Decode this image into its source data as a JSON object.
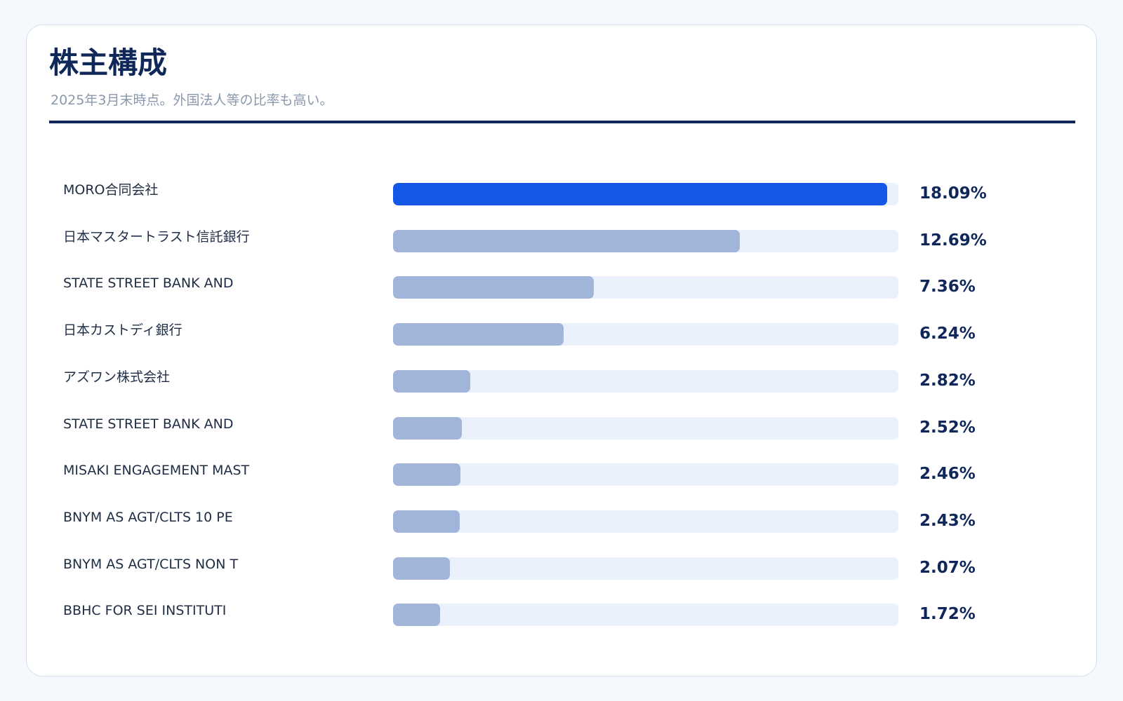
{
  "header": {
    "title": "株主構成",
    "subtitle": "2025年3月末時点。外国法人等の比率も高い。"
  },
  "colors": {
    "highlight_bar": "#1557e6",
    "bar": "#a1b4d9",
    "track": "#eaf1fc",
    "title": "#10275a"
  },
  "chart_data": {
    "type": "bar",
    "orientation": "horizontal",
    "title": "株主構成",
    "subtitle": "2025年3月末時点。外国法人等の比率も高い。",
    "xlim": [
      0,
      18.5
    ],
    "categories": [
      "MORO合同会社",
      "日本マスタートラスト信託銀行",
      "STATE STREET BANK AND",
      "日本カストディ銀行",
      "アズワン株式会社",
      "STATE STREET BANK AND",
      "MISAKI ENGAGEMENT MAST",
      "BNYM AS AGT/CLTS 10 PE",
      "BNYM AS AGT/CLTS NON T",
      "BBHC FOR SEI INSTITUTI"
    ],
    "values": [
      18.09,
      12.69,
      7.36,
      6.24,
      2.82,
      2.52,
      2.46,
      2.43,
      2.07,
      1.72
    ],
    "value_labels": [
      "18.09%",
      "12.69%",
      "7.36%",
      "6.24%",
      "2.82%",
      "2.52%",
      "2.46%",
      "2.43%",
      "2.07%",
      "1.72%"
    ],
    "highlight_index": 0
  }
}
